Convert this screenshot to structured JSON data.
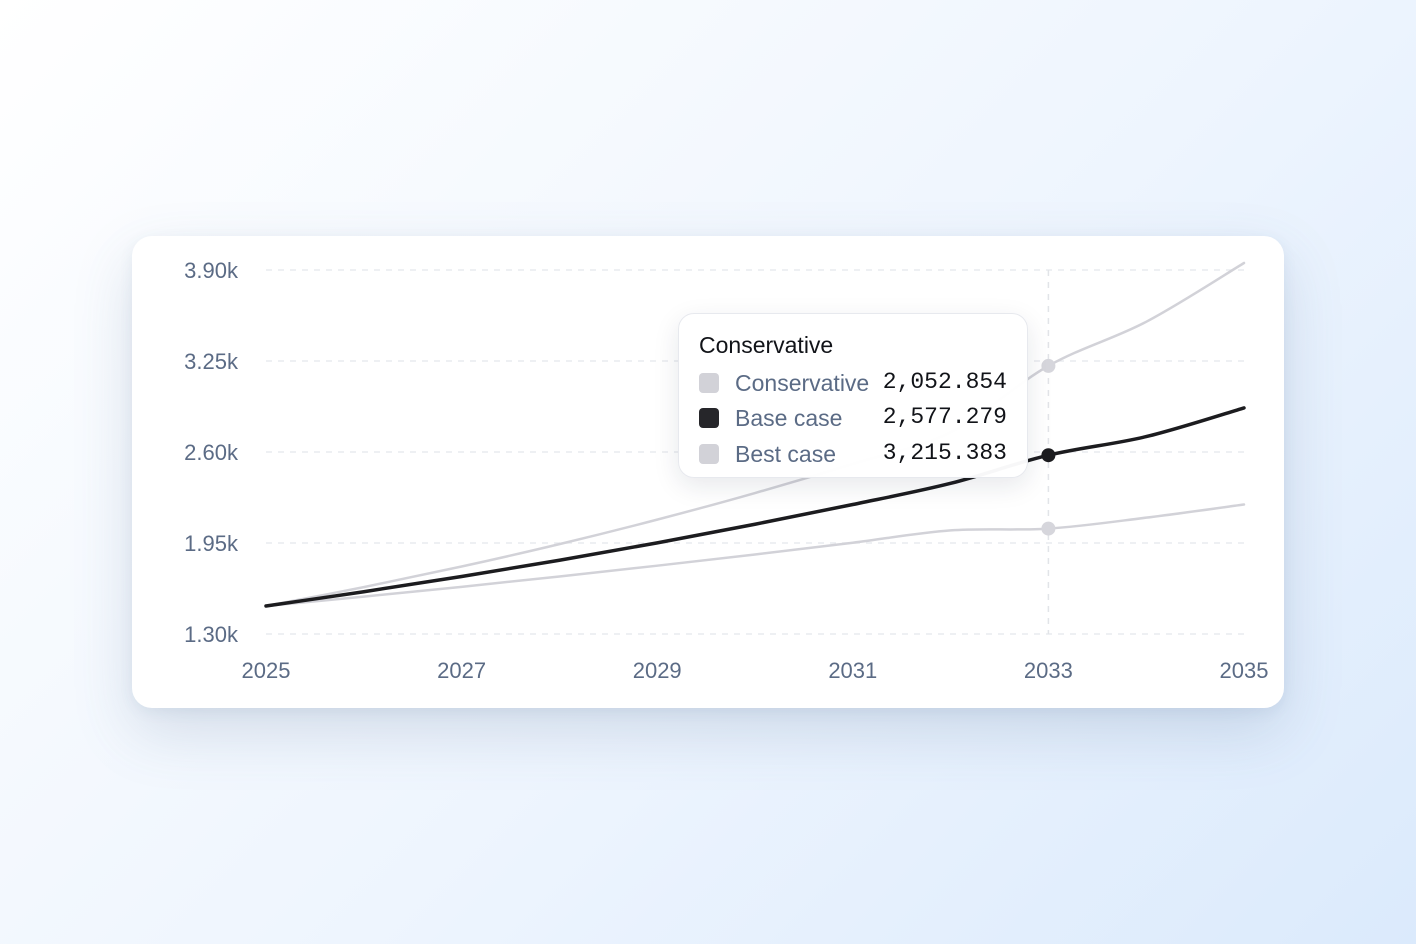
{
  "chart_data": {
    "type": "line",
    "x": [
      2025,
      2026,
      2027,
      2028,
      2029,
      2030,
      2031,
      2032,
      2033,
      2034,
      2035
    ],
    "x_ticks": [
      "2025",
      "2027",
      "2029",
      "2031",
      "2033",
      "2035"
    ],
    "y_ticks": [
      "1.30k",
      "1.95k",
      "2.60k",
      "3.25k",
      "3.90k"
    ],
    "ylim": [
      1300,
      3900
    ],
    "xlim": [
      2025,
      2035
    ],
    "grid": true,
    "series": [
      {
        "name": "Conservative",
        "color": "#d2d2d8",
        "values": [
          1500,
          1567,
          1637,
          1711,
          1788,
          1868,
          1952,
          2040,
          2053,
          2131,
          2225
        ]
      },
      {
        "name": "Base case",
        "color": "#1c1c1f",
        "values": [
          1500,
          1602,
          1711,
          1827,
          1951,
          2084,
          2225,
          2376,
          2577,
          2710,
          2915
        ]
      },
      {
        "name": "Best case",
        "color": "#d2d2d8",
        "values": [
          1500,
          1635,
          1782,
          1942,
          2117,
          2307,
          2515,
          2741,
          3215,
          3530,
          3950
        ]
      }
    ],
    "highlight": {
      "x": 2033,
      "title": "Conservative",
      "rows": [
        {
          "name": "Conservative",
          "value": "2,052.854",
          "color": "#d2d2d8"
        },
        {
          "name": "Base case",
          "value": "2,577.279",
          "color": "#26262a"
        },
        {
          "name": "Best case",
          "value": "3,215.383",
          "color": "#d2d2d8"
        }
      ]
    }
  }
}
